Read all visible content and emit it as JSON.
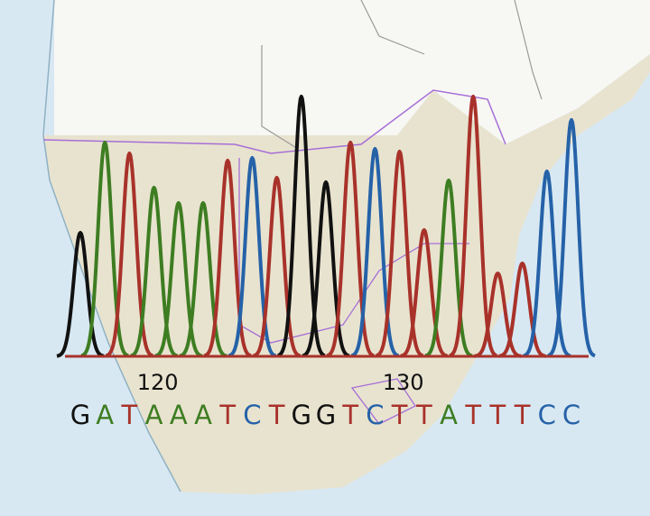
{
  "chart_data": {
    "type": "line",
    "subtype": "dna-chromatogram",
    "x_tick_labels": [
      {
        "position": 120,
        "label": "120"
      },
      {
        "position": 130,
        "label": "130"
      }
    ],
    "start_position": 117,
    "sequence": [
      "G",
      "A",
      "T",
      "A",
      "A",
      "A",
      "T",
      "C",
      "T",
      "G",
      "G",
      "T",
      "C",
      "T",
      "T",
      "A",
      "T",
      "T",
      "T",
      "C",
      "C"
    ],
    "peak_heights": [
      137,
      237,
      225,
      187,
      170,
      170,
      217,
      220,
      198,
      288,
      193,
      237,
      230,
      227,
      140,
      195,
      288,
      92,
      103,
      205,
      262
    ],
    "intensity_range": [
      0,
      300
    ],
    "base_colors": {
      "G": "#111111",
      "A": "#3e7d22",
      "T": "#a8322a",
      "C": "#2562a8"
    },
    "baseline_color": "#a8322a",
    "grid": false,
    "legend": "none"
  },
  "background": {
    "ocean_color": "#d8e8f2",
    "land_color": "#e8e3cf",
    "northern_land_color": "#f7f7f4",
    "border_color": "#a66fd6"
  }
}
